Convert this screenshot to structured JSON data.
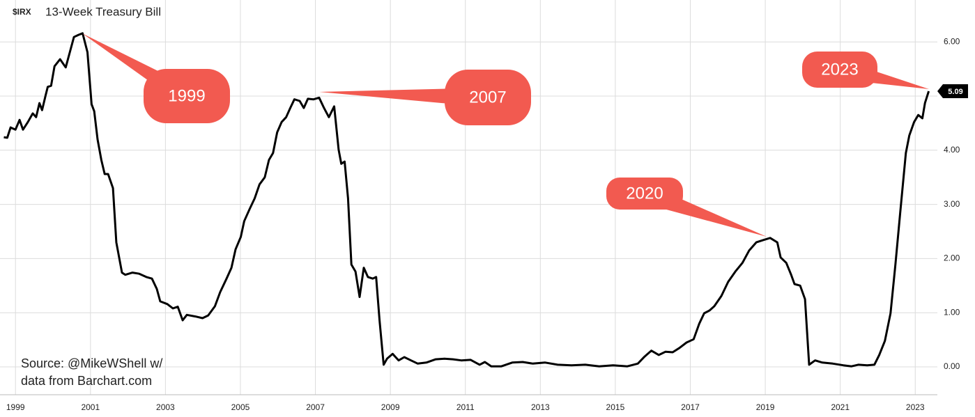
{
  "chart_data": {
    "type": "line",
    "symbol": "$IRX",
    "title": "13-Week Treasury Bill",
    "source": [
      "Source: @MikeWShell w/",
      "data from Barchart.com"
    ],
    "annotations": [
      {
        "text": "1999"
      },
      {
        "text": "2007"
      },
      {
        "text": "2020"
      },
      {
        "text": "2023"
      }
    ],
    "annotation_color": "#f25a50",
    "grid": true,
    "xlim": [
      1998.68,
      2023.59
    ],
    "xticks": [
      1999,
      2001,
      2003,
      2005,
      2007,
      2009,
      2011,
      2013,
      2015,
      2017,
      2019,
      2021,
      2023
    ],
    "ylim": [
      0,
      6
    ],
    "yticks": [
      {
        "value": 0,
        "label": "0.00"
      },
      {
        "value": 1,
        "label": "1.00"
      },
      {
        "value": 2,
        "label": "2.00"
      },
      {
        "value": 3,
        "label": "3.00"
      },
      {
        "value": 4,
        "label": "4.00"
      },
      {
        "value": 5,
        "label": "5.00"
      },
      {
        "value": 6,
        "label": "6.00"
      }
    ],
    "x": [
      1998.69,
      1998.78,
      1998.87,
      1999.0,
      1999.11,
      1999.2,
      1999.33,
      1999.46,
      1999.55,
      1999.64,
      1999.71,
      1999.8,
      1999.86,
      1999.95,
      2000.04,
      2000.19,
      2000.34,
      2000.45,
      2000.56,
      2000.68,
      2000.79,
      2000.92,
      2001.03,
      2001.1,
      2001.19,
      2001.29,
      2001.38,
      2001.47,
      2001.6,
      2001.69,
      2001.84,
      2001.93,
      2002.12,
      2002.3,
      2002.49,
      2002.64,
      2002.77,
      2002.86,
      2003.05,
      2003.2,
      2003.33,
      2003.46,
      2003.57,
      2003.8,
      2003.99,
      2004.14,
      2004.32,
      2004.46,
      2004.63,
      2004.76,
      2004.87,
      2005.01,
      2005.1,
      2005.25,
      2005.38,
      2005.51,
      2005.65,
      2005.76,
      2005.87,
      2005.98,
      2006.1,
      2006.22,
      2006.33,
      2006.44,
      2006.58,
      2006.69,
      2006.8,
      2006.95,
      2007.1,
      2007.23,
      2007.36,
      2007.5,
      2007.62,
      2007.69,
      2007.78,
      2007.87,
      2007.96,
      2008.07,
      2008.18,
      2008.29,
      2008.4,
      2008.53,
      2008.62,
      2008.71,
      2008.82,
      2008.91,
      2009.06,
      2009.22,
      2009.37,
      2009.55,
      2009.73,
      2009.96,
      2010.21,
      2010.44,
      2010.67,
      2010.89,
      2011.14,
      2011.38,
      2011.52,
      2011.69,
      2011.96,
      2012.25,
      2012.53,
      2012.8,
      2013.13,
      2013.46,
      2013.83,
      2014.2,
      2014.57,
      2014.94,
      2015.32,
      2015.6,
      2015.78,
      2015.96,
      2016.16,
      2016.34,
      2016.53,
      2016.71,
      2016.9,
      2017.09,
      2017.24,
      2017.37,
      2017.51,
      2017.64,
      2017.83,
      2018.01,
      2018.2,
      2018.39,
      2018.57,
      2018.76,
      2018.94,
      2019.13,
      2019.32,
      2019.41,
      2019.56,
      2019.69,
      2019.78,
      2019.93,
      2020.06,
      2020.17,
      2020.33,
      2020.52,
      2020.8,
      2021.08,
      2021.3,
      2021.48,
      2021.72,
      2021.91,
      2022.04,
      2022.19,
      2022.34,
      2022.47,
      2022.6,
      2022.75,
      2022.84,
      2022.97,
      2023.08,
      2023.19,
      2023.26,
      2023.36
    ],
    "series": [
      {
        "name": "$IRX",
        "color": "#000000",
        "values": [
          4.24,
          4.23,
          4.42,
          4.38,
          4.56,
          4.38,
          4.52,
          4.68,
          4.61,
          4.87,
          4.74,
          5.0,
          5.17,
          5.19,
          5.55,
          5.68,
          5.53,
          5.81,
          6.09,
          6.13,
          6.16,
          5.81,
          4.85,
          4.72,
          4.2,
          3.82,
          3.56,
          3.56,
          3.3,
          2.3,
          1.74,
          1.7,
          1.74,
          1.72,
          1.66,
          1.63,
          1.44,
          1.21,
          1.16,
          1.08,
          1.11,
          0.86,
          0.96,
          0.93,
          0.9,
          0.95,
          1.12,
          1.38,
          1.63,
          1.83,
          2.17,
          2.4,
          2.69,
          2.92,
          3.11,
          3.37,
          3.5,
          3.82,
          3.95,
          4.33,
          4.52,
          4.61,
          4.78,
          4.94,
          4.91,
          4.78,
          4.95,
          4.94,
          4.97,
          4.78,
          4.61,
          4.81,
          4.01,
          3.75,
          3.79,
          3.11,
          1.89,
          1.76,
          1.29,
          1.83,
          1.66,
          1.63,
          1.66,
          0.86,
          0.04,
          0.15,
          0.24,
          0.12,
          0.18,
          0.12,
          0.06,
          0.08,
          0.14,
          0.15,
          0.14,
          0.12,
          0.13,
          0.04,
          0.09,
          0.01,
          0.01,
          0.08,
          0.09,
          0.06,
          0.08,
          0.04,
          0.03,
          0.04,
          0.01,
          0.03,
          0.01,
          0.06,
          0.19,
          0.3,
          0.22,
          0.28,
          0.27,
          0.35,
          0.45,
          0.51,
          0.8,
          0.99,
          1.04,
          1.12,
          1.31,
          1.57,
          1.76,
          1.92,
          2.15,
          2.3,
          2.34,
          2.38,
          2.3,
          2.02,
          1.92,
          1.7,
          1.53,
          1.5,
          1.25,
          0.04,
          0.12,
          0.08,
          0.06,
          0.03,
          0.01,
          0.04,
          0.03,
          0.04,
          0.22,
          0.48,
          0.99,
          1.89,
          2.85,
          3.95,
          4.27,
          4.52,
          4.65,
          4.59,
          4.87,
          5.09
        ]
      }
    ]
  }
}
